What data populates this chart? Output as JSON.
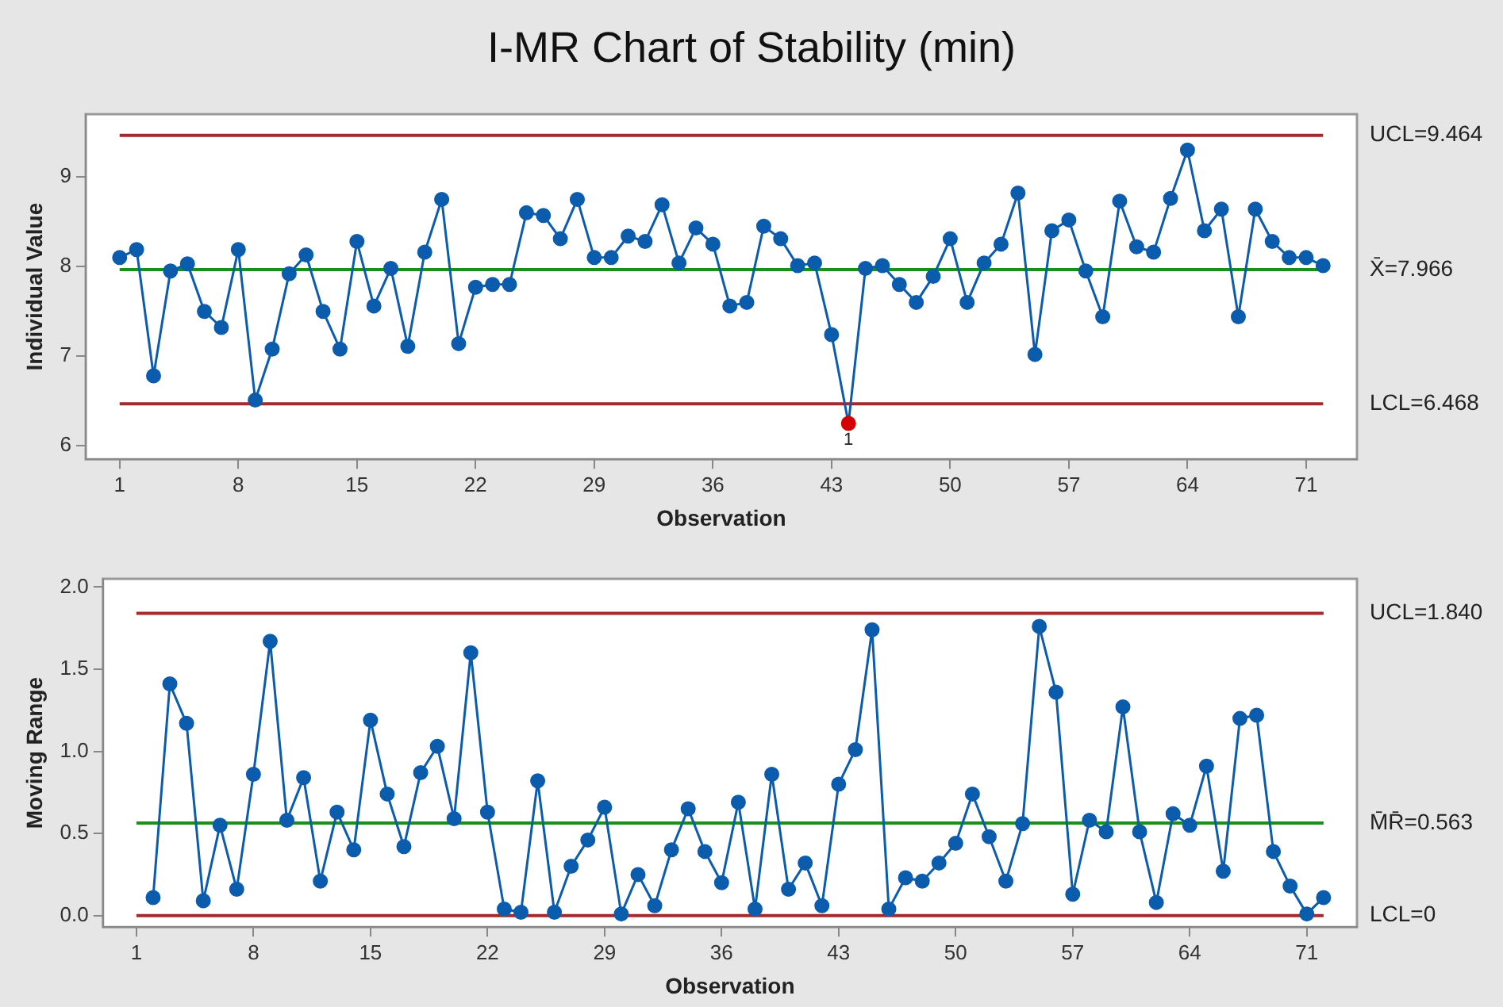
{
  "chart_data": [
    {
      "type": "line",
      "title": "I-MR Chart of Stability (min)",
      "xlabel": "Observation",
      "ylabel": "Individual Value",
      "x": [
        1,
        2,
        3,
        4,
        5,
        6,
        7,
        8,
        9,
        10,
        11,
        12,
        13,
        14,
        15,
        16,
        17,
        18,
        19,
        20,
        21,
        22,
        23,
        24,
        25,
        26,
        27,
        28,
        29,
        30,
        31,
        32,
        33,
        34,
        35,
        36,
        37,
        38,
        39,
        40,
        41,
        42,
        43,
        44,
        45,
        46,
        47,
        48,
        49,
        50,
        51,
        52,
        53,
        54,
        55,
        56,
        57,
        58,
        59,
        60,
        61,
        62,
        63,
        64,
        65,
        66,
        67,
        68,
        69,
        70,
        71,
        72
      ],
      "series": [
        {
          "color": "#0b5cad",
          "colors": [
            "#0b5cad",
            "#0b5cad",
            "#0b5cad",
            "#0b5cad",
            "#0b5cad",
            "#0b5cad",
            "#0b5cad",
            "#0b5cad",
            "#0b5cad",
            "#0b5cad",
            "#0b5cad",
            "#0b5cad",
            "#0b5cad",
            "#0b5cad",
            "#0b5cad",
            "#0b5cad",
            "#0b5cad",
            "#0b5cad",
            "#0b5cad",
            "#0b5cad",
            "#0b5cad",
            "#0b5cad",
            "#0b5cad",
            "#0b5cad",
            "#0b5cad",
            "#0b5cad",
            "#0b5cad",
            "#0b5cad",
            "#0b5cad",
            "#0b5cad",
            "#0b5cad",
            "#0b5cad",
            "#0b5cad",
            "#0b5cad",
            "#0b5cad",
            "#0b5cad",
            "#0b5cad",
            "#0b5cad",
            "#0b5cad",
            "#0b5cad",
            "#0b5cad",
            "#0b5cad",
            "#0b5cad",
            "#d40000",
            "#0b5cad",
            "#0b5cad",
            "#0b5cad",
            "#0b5cad",
            "#0b5cad",
            "#0b5cad",
            "#0b5cad",
            "#0b5cad",
            "#0b5cad",
            "#0b5cad",
            "#0b5cad",
            "#0b5cad",
            "#0b5cad",
            "#0b5cad",
            "#0b5cad",
            "#0b5cad",
            "#0b5cad",
            "#0b5cad",
            "#0b5cad",
            "#0b5cad",
            "#0b5cad",
            "#0b5cad",
            "#0b5cad",
            "#0b5cad",
            "#0b5cad",
            "#0b5cad",
            "#0b5cad",
            "#0b5cad"
          ],
          "values": [
            8.1,
            8.19,
            6.78,
            7.95,
            8.03,
            7.5,
            7.32,
            8.19,
            6.51,
            7.08,
            7.92,
            8.13,
            7.5,
            7.08,
            8.28,
            7.56,
            7.98,
            7.11,
            8.16,
            8.75,
            7.14,
            7.77,
            7.8,
            7.8,
            8.6,
            8.57,
            8.31,
            8.75,
            8.1,
            8.1,
            8.34,
            8.28,
            8.69,
            8.04,
            8.43,
            8.25,
            7.56,
            7.6,
            8.45,
            8.31,
            8.01,
            8.04,
            7.24,
            6.25,
            7.98,
            8.01,
            7.8,
            7.6,
            7.89,
            8.31,
            7.6,
            8.04,
            8.25,
            8.82,
            7.02,
            8.4,
            8.52,
            7.95,
            7.44,
            8.73,
            8.22,
            8.16,
            8.76,
            9.3,
            8.4,
            8.64,
            7.44,
            8.64,
            8.28,
            8.1,
            8.1,
            8.01
          ]
        }
      ],
      "marker": "circle",
      "xlim": [
        -1,
        74
      ],
      "xticks": [
        1,
        8,
        15,
        22,
        29,
        36,
        43,
        50,
        57,
        64,
        71
      ],
      "ylim": [
        5.85,
        9.7
      ],
      "yticks": [
        6,
        7,
        8,
        9
      ],
      "ref_lines": [
        {
          "axis": "y",
          "value": 9.464,
          "label": "UCL=9.464",
          "color": "#a52a2a"
        },
        {
          "axis": "y",
          "value": 7.966,
          "label": "X̄=7.966",
          "color": "#1a8f1a"
        },
        {
          "axis": "y",
          "value": 6.468,
          "label": "LCL=6.468",
          "color": "#a52a2a"
        }
      ],
      "annotations": [
        {
          "text": "1",
          "x": 44,
          "y": 6.25
        }
      ]
    },
    {
      "type": "line",
      "xlabel": "Observation",
      "ylabel": "Moving Range",
      "x": [
        2,
        3,
        4,
        5,
        6,
        7,
        8,
        9,
        10,
        11,
        12,
        13,
        14,
        15,
        16,
        17,
        18,
        19,
        20,
        21,
        22,
        23,
        24,
        25,
        26,
        27,
        28,
        29,
        30,
        31,
        32,
        33,
        34,
        35,
        36,
        37,
        38,
        39,
        40,
        41,
        42,
        43,
        44,
        45,
        46,
        47,
        48,
        49,
        50,
        51,
        52,
        53,
        54,
        55,
        56,
        57,
        58,
        59,
        60,
        61,
        62,
        63,
        64,
        65,
        66,
        67,
        68,
        69,
        70,
        71,
        72
      ],
      "series": [
        {
          "color": "#0b5cad",
          "values": [
            0.11,
            1.41,
            1.17,
            0.09,
            0.55,
            0.16,
            0.86,
            1.67,
            0.58,
            0.84,
            0.21,
            0.63,
            0.4,
            1.19,
            0.74,
            0.42,
            0.87,
            1.03,
            0.59,
            1.6,
            0.63,
            0.04,
            0.02,
            0.82,
            0.02,
            0.3,
            0.46,
            0.66,
            0.01,
            0.25,
            0.06,
            0.4,
            0.65,
            0.39,
            0.2,
            0.69,
            0.04,
            0.86,
            0.16,
            0.32,
            0.06,
            0.8,
            1.01,
            1.74,
            0.04,
            0.23,
            0.21,
            0.32,
            0.44,
            0.74,
            0.48,
            0.21,
            0.56,
            1.76,
            1.36,
            0.13,
            0.58,
            0.51,
            1.27,
            0.51,
            0.08,
            0.62,
            0.55,
            0.91,
            0.27,
            1.2,
            1.22,
            0.39,
            0.18,
            0.01,
            0.11
          ]
        }
      ],
      "marker": "circle",
      "xlim": [
        -1,
        74
      ],
      "xticks": [
        1,
        8,
        15,
        22,
        29,
        36,
        43,
        50,
        57,
        64,
        71
      ],
      "ylim": [
        -0.07,
        2.05
      ],
      "yticks": [
        {
          "value": 0,
          "label": "0.0"
        },
        {
          "value": 0.5,
          "label": "0.5"
        },
        {
          "value": 1,
          "label": "1.0"
        },
        {
          "value": 1.5,
          "label": "1.5"
        },
        {
          "value": 2,
          "label": "2.0"
        }
      ],
      "ref_lines": [
        {
          "axis": "y",
          "value": 1.84,
          "label": "UCL=1.840",
          "color": "#a52a2a"
        },
        {
          "axis": "y",
          "value": 0.563,
          "label": "M̄R̄=0.563",
          "color": "#1a8f1a"
        },
        {
          "axis": "y",
          "value": 0,
          "label": "LCL=0",
          "color": "#a52a2a"
        }
      ]
    }
  ]
}
